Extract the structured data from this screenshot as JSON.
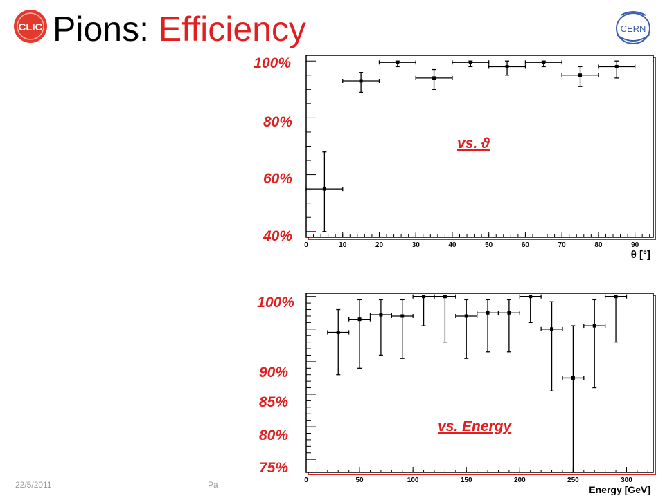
{
  "title": {
    "prefix": "Pions:",
    "highlight": "Efficiency"
  },
  "logos": {
    "left": "clic-logo-icon",
    "right": "CERN"
  },
  "colors": {
    "accent": "#e02020",
    "frame": "#e02020"
  },
  "footer": {
    "date": "22/5/2011",
    "page": "Pa"
  },
  "chart_data": [
    {
      "type": "scatter",
      "tag": "vs. ϑ",
      "xlabel": "θ [°]",
      "xlim": [
        0,
        95
      ],
      "ylim": [
        38,
        102
      ],
      "x_ticks": [
        "0",
        "10",
        "20",
        "30",
        "40",
        "50",
        "60",
        "70",
        "80",
        "90"
      ],
      "y_labels": [
        "100%",
        "80%",
        "60%",
        "40%"
      ],
      "points": [
        {
          "x": 5,
          "y": 55,
          "xerr": 5,
          "ylo": 40,
          "yhi": 68
        },
        {
          "x": 15,
          "y": 93,
          "xerr": 5,
          "ylo": 89,
          "yhi": 96
        },
        {
          "x": 25,
          "y": 99.5,
          "xerr": 5,
          "ylo": 98,
          "yhi": 100
        },
        {
          "x": 35,
          "y": 94,
          "xerr": 5,
          "ylo": 90,
          "yhi": 97
        },
        {
          "x": 45,
          "y": 99.5,
          "xerr": 5,
          "ylo": 98,
          "yhi": 100
        },
        {
          "x": 55,
          "y": 98,
          "xerr": 5,
          "ylo": 95,
          "yhi": 100
        },
        {
          "x": 65,
          "y": 99.5,
          "xerr": 5,
          "ylo": 98,
          "yhi": 100
        },
        {
          "x": 75,
          "y": 95,
          "xerr": 5,
          "ylo": 91,
          "yhi": 98
        },
        {
          "x": 85,
          "y": 98,
          "xerr": 5,
          "ylo": 94,
          "yhi": 100
        }
      ]
    },
    {
      "type": "scatter",
      "tag": "vs. Energy",
      "xlabel": "Energy [GeV]",
      "xlim": [
        0,
        325
      ],
      "ylim": [
        73,
        100.5
      ],
      "x_ticks": [
        "0",
        "50",
        "100",
        "150",
        "200",
        "250",
        "300"
      ],
      "y_labels": [
        "100%",
        "90%",
        "85%",
        "80%",
        "75%"
      ],
      "points": [
        {
          "x": 30,
          "y": 94.5,
          "xerr": 10,
          "ylo": 88,
          "yhi": 98
        },
        {
          "x": 50,
          "y": 96.5,
          "xerr": 10,
          "ylo": 89,
          "yhi": 99.5
        },
        {
          "x": 70,
          "y": 97.2,
          "xerr": 10,
          "ylo": 91,
          "yhi": 99.5
        },
        {
          "x": 90,
          "y": 97,
          "xerr": 10,
          "ylo": 90.5,
          "yhi": 99.5
        },
        {
          "x": 110,
          "y": 100,
          "xerr": 10,
          "ylo": 95.5,
          "yhi": 100
        },
        {
          "x": 130,
          "y": 100,
          "xerr": 10,
          "ylo": 93,
          "yhi": 100
        },
        {
          "x": 150,
          "y": 97,
          "xerr": 10,
          "ylo": 90.5,
          "yhi": 99.5
        },
        {
          "x": 170,
          "y": 97.5,
          "xerr": 10,
          "ylo": 91.5,
          "yhi": 99.5
        },
        {
          "x": 190,
          "y": 97.5,
          "xerr": 10,
          "ylo": 91.5,
          "yhi": 99.5
        },
        {
          "x": 210,
          "y": 100,
          "xerr": 10,
          "ylo": 96,
          "yhi": 100
        },
        {
          "x": 230,
          "y": 95,
          "xerr": 10,
          "ylo": 85.5,
          "yhi": 99.2
        },
        {
          "x": 250,
          "y": 87.5,
          "xerr": 10,
          "ylo": 73,
          "yhi": 95.5
        },
        {
          "x": 270,
          "y": 95.5,
          "xerr": 10,
          "ylo": 86,
          "yhi": 99.5
        },
        {
          "x": 290,
          "y": 100,
          "xerr": 10,
          "ylo": 93,
          "yhi": 100
        }
      ]
    }
  ]
}
